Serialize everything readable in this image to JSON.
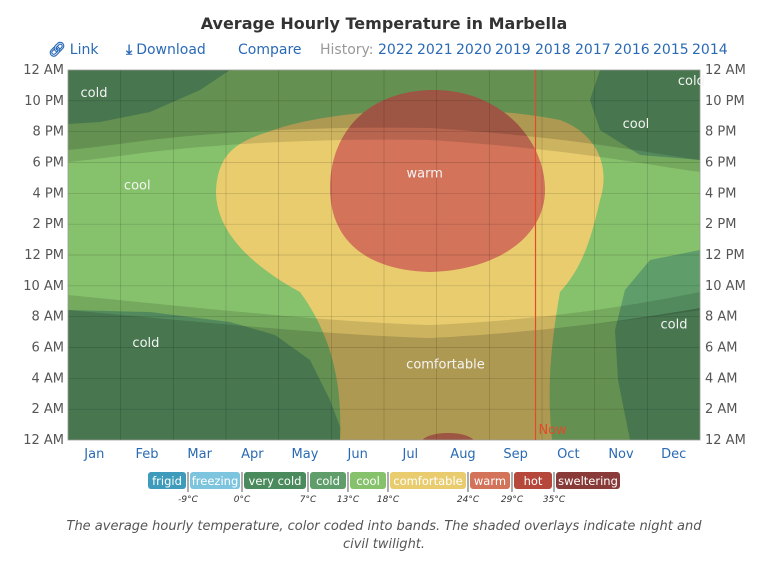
{
  "page": {
    "title": "Average Hourly Temperature in Marbella",
    "caption": "The average hourly temperature, color coded into bands. The shaded overlays indicate night and civil twilight."
  },
  "toolbar": {
    "link_label": "Link",
    "link_icon": "link-icon",
    "download_label": "Download",
    "download_icon": "download-icon",
    "compare_label": "Compare",
    "history_label": "History:",
    "years": [
      "2022",
      "2021",
      "2020",
      "2019",
      "2018",
      "2017",
      "2016",
      "2015",
      "2014"
    ]
  },
  "chart_data": {
    "type": "heatmap",
    "title": "Average Hourly Temperature in Marbella",
    "x_categories": [
      "Jan",
      "Feb",
      "Mar",
      "Apr",
      "May",
      "Jun",
      "Jul",
      "Aug",
      "Sep",
      "Oct",
      "Nov",
      "Dec"
    ],
    "y_ticks": [
      "12 AM",
      "2 AM",
      "4 AM",
      "6 AM",
      "8 AM",
      "10 AM",
      "12 PM",
      "2 PM",
      "4 PM",
      "6 PM",
      "8 PM",
      "10 PM",
      "12 AM"
    ],
    "y_range_hours": [
      0,
      24
    ],
    "now_label": "Now",
    "now_day_of_year": 270,
    "band_labels": [
      {
        "text": "cold",
        "day": 15,
        "hour": 22.5
      },
      {
        "text": "cold",
        "day": 360,
        "hour": 23.3
      },
      {
        "text": "cool",
        "day": 328,
        "hour": 20.5
      },
      {
        "text": "cool",
        "day": 40,
        "hour": 16.5
      },
      {
        "text": "warm",
        "day": 206,
        "hour": 17.3
      },
      {
        "text": "cold",
        "day": 45,
        "hour": 6.3
      },
      {
        "text": "cold",
        "day": 350,
        "hour": 7.5
      },
      {
        "text": "comfortable",
        "day": 218,
        "hour": 4.9
      }
    ],
    "legend": [
      {
        "label": "frigid",
        "color": "#3f9bbb"
      },
      {
        "label": "freezing",
        "color": "#7dc4df"
      },
      {
        "label": "very cold",
        "color": "#4a8a5c"
      },
      {
        "label": "cold",
        "color": "#5f9e6a"
      },
      {
        "label": "cool",
        "color": "#86c16c"
      },
      {
        "label": "comfortable",
        "color": "#e9cc6e"
      },
      {
        "label": "warm",
        "color": "#d2735a"
      },
      {
        "label": "hot",
        "color": "#b6473b"
      },
      {
        "label": "sweltering",
        "color": "#893b39"
      }
    ],
    "legend_thresholds": [
      "-9°C",
      "0°C",
      "7°C",
      "13°C",
      "18°C",
      "24°C",
      "29°C",
      "35°C"
    ]
  }
}
